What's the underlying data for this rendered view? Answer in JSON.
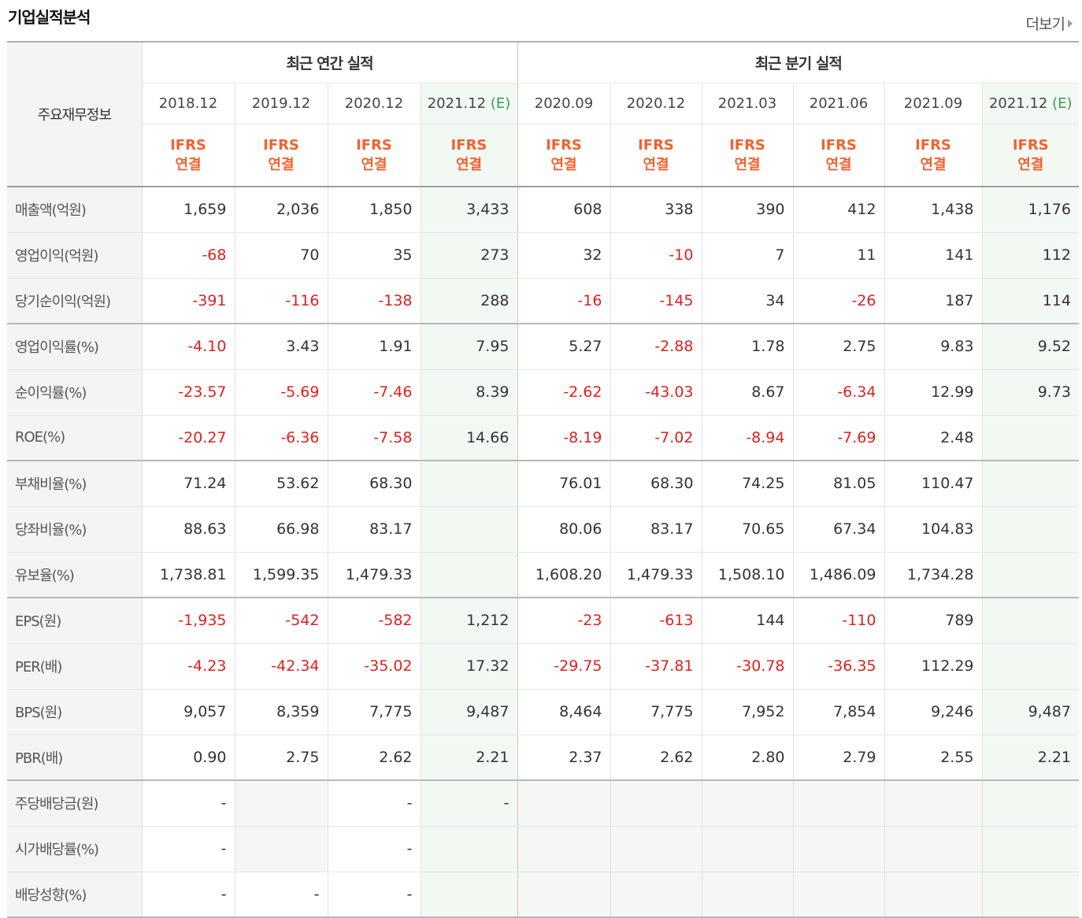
{
  "header": {
    "title": "기업실적분석",
    "more_label": "더보기"
  },
  "table": {
    "corner_label": "주요재무정보",
    "groups": {
      "annual": "최근 연간 실적",
      "quarterly": "최근 분기 실적"
    },
    "columns": [
      {
        "date": "2018.12",
        "est": ""
      },
      {
        "date": "2019.12",
        "est": ""
      },
      {
        "date": "2020.12",
        "est": ""
      },
      {
        "date": "2021.12",
        "est": "(E)"
      },
      {
        "date": "2020.09",
        "est": ""
      },
      {
        "date": "2020.12",
        "est": ""
      },
      {
        "date": "2021.03",
        "est": ""
      },
      {
        "date": "2021.06",
        "est": ""
      },
      {
        "date": "2021.09",
        "est": ""
      },
      {
        "date": "2021.12",
        "est": "(E)"
      }
    ],
    "ifrs_line1": "IFRS",
    "ifrs_line2": "연결",
    "rows": [
      {
        "label": "매출액(억원)",
        "values": [
          "1,659",
          "2,036",
          "1,850",
          "3,433",
          "608",
          "338",
          "390",
          "412",
          "1,438",
          "1,176"
        ]
      },
      {
        "label": "영업이익(억원)",
        "values": [
          "-68",
          "70",
          "35",
          "273",
          "32",
          "-10",
          "7",
          "11",
          "141",
          "112"
        ]
      },
      {
        "label": "당기순이익(억원)",
        "values": [
          "-391",
          "-116",
          "-138",
          "288",
          "-16",
          "-145",
          "34",
          "-26",
          "187",
          "114"
        ]
      },
      {
        "label": "영업이익률(%)",
        "values": [
          "-4.10",
          "3.43",
          "1.91",
          "7.95",
          "5.27",
          "-2.88",
          "1.78",
          "2.75",
          "9.83",
          "9.52"
        ]
      },
      {
        "label": "순이익률(%)",
        "values": [
          "-23.57",
          "-5.69",
          "-7.46",
          "8.39",
          "-2.62",
          "-43.03",
          "8.67",
          "-6.34",
          "12.99",
          "9.73"
        ]
      },
      {
        "label": "ROE(%)",
        "values": [
          "-20.27",
          "-6.36",
          "-7.58",
          "14.66",
          "-8.19",
          "-7.02",
          "-8.94",
          "-7.69",
          "2.48",
          ""
        ]
      },
      {
        "label": "부채비율(%)",
        "values": [
          "71.24",
          "53.62",
          "68.30",
          "",
          "76.01",
          "68.30",
          "74.25",
          "81.05",
          "110.47",
          ""
        ]
      },
      {
        "label": "당좌비율(%)",
        "values": [
          "88.63",
          "66.98",
          "83.17",
          "",
          "80.06",
          "83.17",
          "70.65",
          "67.34",
          "104.83",
          ""
        ]
      },
      {
        "label": "유보율(%)",
        "values": [
          "1,738.81",
          "1,599.35",
          "1,479.33",
          "",
          "1,608.20",
          "1,479.33",
          "1,508.10",
          "1,486.09",
          "1,734.28",
          ""
        ]
      },
      {
        "label": "EPS(원)",
        "values": [
          "-1,935",
          "-542",
          "-582",
          "1,212",
          "-23",
          "-613",
          "144",
          "-110",
          "789",
          ""
        ]
      },
      {
        "label": "PER(배)",
        "values": [
          "-4.23",
          "-42.34",
          "-35.02",
          "17.32",
          "-29.75",
          "-37.81",
          "-30.78",
          "-36.35",
          "112.29",
          ""
        ]
      },
      {
        "label": "BPS(원)",
        "values": [
          "9,057",
          "8,359",
          "7,775",
          "9,487",
          "8,464",
          "7,775",
          "7,952",
          "7,854",
          "9,246",
          "9,487"
        ]
      },
      {
        "label": "PBR(배)",
        "values": [
          "0.90",
          "2.75",
          "2.62",
          "2.21",
          "2.37",
          "2.62",
          "2.80",
          "2.79",
          "2.55",
          "2.21"
        ]
      },
      {
        "label": "주당배당금(원)",
        "values": [
          "-",
          "",
          "-",
          "-",
          "",
          "",
          "",
          "",
          "",
          ""
        ]
      },
      {
        "label": "시가배당률(%)",
        "values": [
          "-",
          "",
          "-",
          "",
          "",
          "",
          "",
          "",
          "",
          ""
        ]
      },
      {
        "label": "배당성향(%)",
        "values": [
          "-",
          "-",
          "-",
          "",
          "",
          "",
          "",
          "",
          "",
          ""
        ]
      }
    ]
  }
}
